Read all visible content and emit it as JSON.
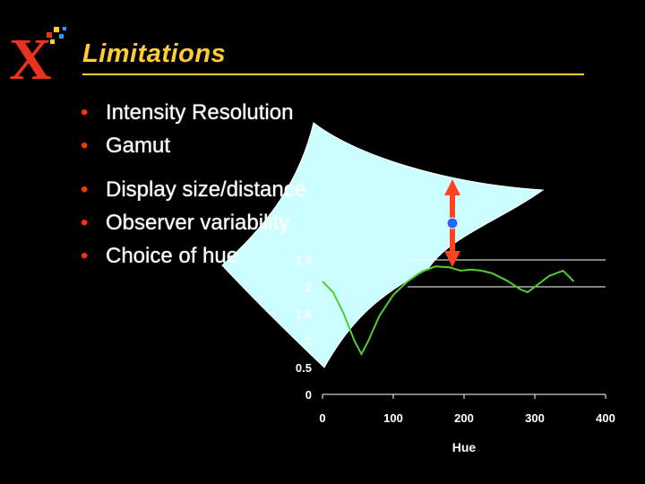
{
  "slide": {
    "title": "Limitations",
    "bullets": [
      "Intensity Resolution",
      "Gamut",
      "Display size/distance",
      "Observer variability",
      "Choice of hue"
    ],
    "bullet_glyph": "•"
  },
  "logo": {
    "name": "xerox-x-logo",
    "letter": "X",
    "color": "#e8341c"
  },
  "colors": {
    "title": "#ffcc33",
    "bullet_dot": "#ff3300",
    "gamut_fill": "#ccffff",
    "curve": "#55cc33",
    "arrow": "#ff4422",
    "marker": "#1e66ff"
  },
  "chart_data": {
    "type": "line",
    "xlabel": "Hue",
    "ylabel": "",
    "x_ticks": [
      "0",
      "100",
      "200",
      "300",
      "400"
    ],
    "y_ticks": [
      "0",
      "0.5",
      "1",
      "1.5",
      "2",
      "2.5"
    ],
    "xlim": [
      0,
      400
    ],
    "ylim": [
      0,
      2.5
    ],
    "series": [
      {
        "x": [
          0,
          15,
          30,
          45,
          55,
          65,
          80,
          100,
          120,
          140,
          160,
          180,
          195,
          210,
          225,
          240,
          260,
          280,
          290,
          305,
          320,
          340,
          355
        ],
        "values": [
          2.1,
          1.9,
          1.5,
          1.0,
          0.75,
          1.0,
          1.45,
          1.85,
          2.1,
          2.28,
          2.38,
          2.36,
          2.3,
          2.32,
          2.3,
          2.25,
          2.12,
          1.95,
          1.9,
          2.05,
          2.2,
          2.3,
          2.1
        ]
      }
    ],
    "horizontal_lines": [
      2.5,
      2.0
    ]
  }
}
